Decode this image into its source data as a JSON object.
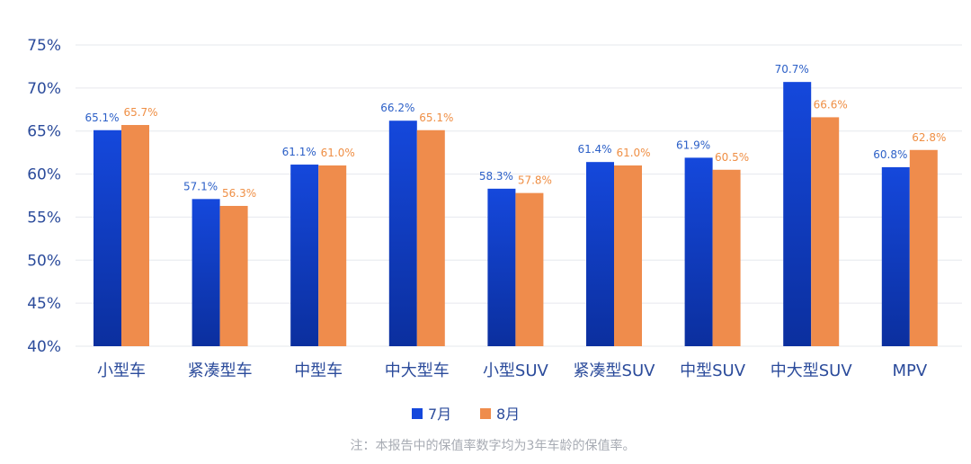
{
  "chart_data": {
    "type": "bar",
    "categories": [
      "小型车",
      "紧凑型车",
      "中型车",
      "中大型车",
      "小型SUV",
      "紧凑型SUV",
      "中型SUV",
      "中大型SUV",
      "MPV"
    ],
    "series": [
      {
        "name": "7月",
        "values": [
          65.1,
          57.1,
          61.1,
          66.2,
          58.3,
          61.4,
          61.9,
          70.7,
          60.8
        ],
        "labels": [
          "65.1%",
          "57.1%",
          "61.1%",
          "66.2%",
          "58.3%",
          "61.4%",
          "61.9%",
          "70.7%",
          "60.8%"
        ]
      },
      {
        "name": "8月",
        "values": [
          65.7,
          56.3,
          61.0,
          65.1,
          57.8,
          61.0,
          60.5,
          66.6,
          62.8
        ],
        "labels": [
          "65.7%",
          "56.3%",
          "61.0%",
          "65.1%",
          "57.8%",
          "61.0%",
          "60.5%",
          "66.6%",
          "62.8%"
        ]
      }
    ],
    "ylim": [
      40,
      75
    ],
    "yticks": [
      "75%",
      "70%",
      "65%",
      "60%",
      "55%",
      "50%",
      "45%",
      "40%"
    ],
    "ytick_values": [
      75,
      70,
      65,
      60,
      55,
      50,
      45,
      40
    ],
    "grid": true,
    "legend": "bottom-center",
    "note": "注：本报告中的保值率数字均为3年车龄的保值率。",
    "colors": {
      "series_0_top": "#1548dc",
      "series_0_bottom": "#0b2f9e",
      "series_1": "#ef8c4c",
      "series_0_label": "#2b5fc7",
      "series_1_label": "#ef8f45",
      "axis_text": "#2b4b9b",
      "grid": "#e6e8ee",
      "note": "#a7abb3"
    }
  }
}
